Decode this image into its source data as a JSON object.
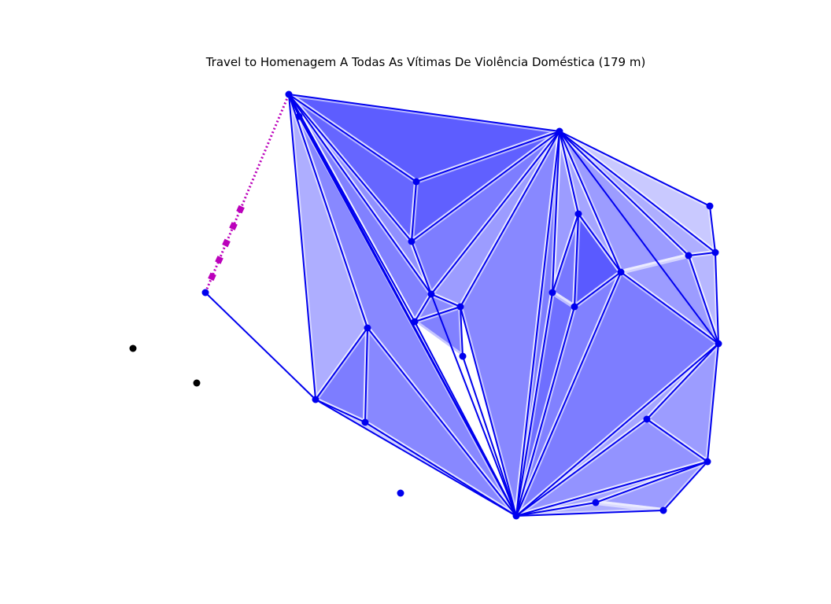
{
  "title": "Travel to Homenagem A Todas As Vítimas De Violência Doméstica (179 m)",
  "colors": {
    "mesh_fill": "#2b2bff",
    "mesh_edge": "#0000ee",
    "node": "#0000ee",
    "route": "#bb00bb",
    "outside_point": "#000000"
  }
}
